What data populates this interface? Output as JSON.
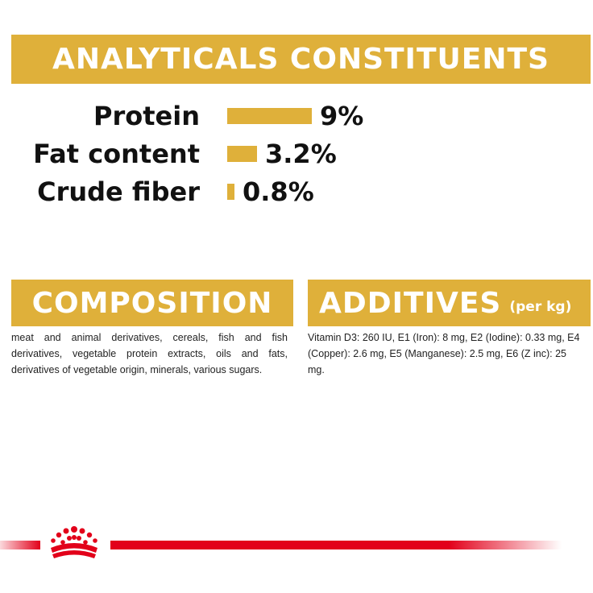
{
  "analytics": {
    "title": "ANALYTICALS CONSTITUENTS",
    "rows": [
      {
        "label": "Protein",
        "value": "9%",
        "level": 9
      },
      {
        "label": "Fat content",
        "value": "3.2%",
        "level": 3.2
      },
      {
        "label": "Crude fiber",
        "value": "0.8%",
        "level": 0.8
      }
    ]
  },
  "composition": {
    "title": "COMPOSITION",
    "text": "meat and animal derivatives, cereals, fish and fish derivatives, vegetable protein extracts, oils and fats, derivatives of vegetable origin, minerals, various sugars."
  },
  "additives": {
    "title": "ADDITIVES",
    "unit": "(per kg)",
    "text": "Vitamin D3: 260 IU, E1 (Iron): 8 mg, E2 (Iodine): 0.33 mg, E4 (Copper): 2.6 mg, E5 (Manganese): 2.5 mg, E6 (Z inc): 25 mg."
  },
  "colors": {
    "accent": "#dfb03a",
    "brand_red": "#e2001a",
    "text": "#111111"
  },
  "icons": {
    "logo": "royal-canin-crown-icon"
  }
}
